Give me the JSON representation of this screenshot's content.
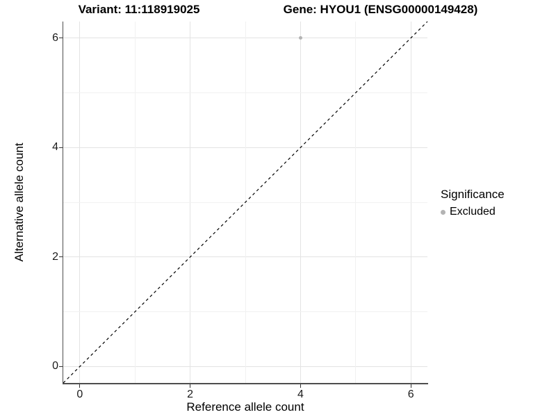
{
  "chart_data": {
    "type": "scatter",
    "title_left": "Variant: 11:118919025",
    "title_right": "Gene: HYOU1 (ENSG00000149428)",
    "xlabel": "Reference allele count",
    "ylabel": "Alternative allele count",
    "xlim": [
      -0.3,
      6.3
    ],
    "ylim": [
      -0.3,
      6.3
    ],
    "x_major_ticks": [
      0,
      2,
      4,
      6
    ],
    "y_major_ticks": [
      0,
      2,
      4,
      6
    ],
    "x_minor_ticks": [
      1,
      3,
      5
    ],
    "y_minor_ticks": [
      1,
      3,
      5
    ],
    "grid": "major+minor",
    "points": [
      {
        "x": 4,
        "y": 6,
        "series": "Excluded",
        "color": "#b3b3b3"
      }
    ],
    "reference_line": {
      "type": "identity",
      "x1": -0.3,
      "y1": -0.3,
      "x2": 6.3,
      "y2": 6.3,
      "style": "dashed",
      "color": "#000000"
    },
    "legend": {
      "title": "Significance",
      "position": "right",
      "items": [
        {
          "label": "Excluded",
          "color": "#b3b3b3"
        }
      ]
    }
  },
  "colors": {
    "background": "#ffffff",
    "grid_major": "#e3e3e3",
    "grid_minor": "#f1f1f1",
    "axis_line": "#4d4d4d",
    "tick": "#333333",
    "text": "#000000",
    "point": "#b3b3b3"
  }
}
